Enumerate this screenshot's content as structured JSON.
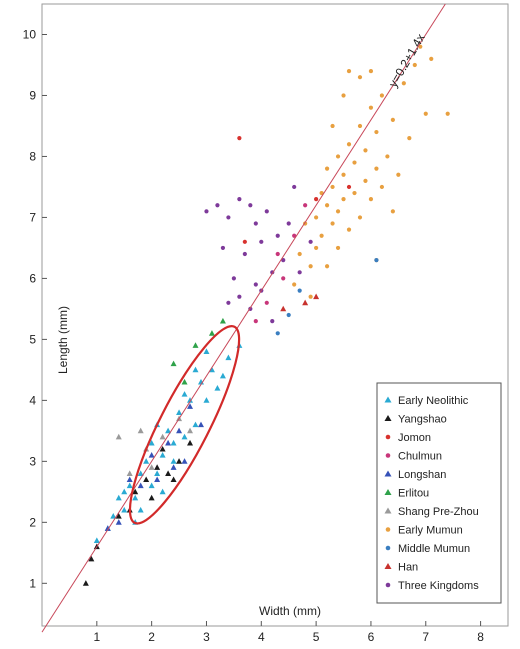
{
  "chart_data": {
    "type": "scatter",
    "xlabel": "Width (mm)",
    "ylabel": "Length (mm)",
    "xlim": [
      0,
      8.5
    ],
    "ylim": [
      0.3,
      10.5
    ],
    "x_ticks": [
      "1",
      "2",
      "3",
      "4",
      "5",
      "6",
      "7",
      "8"
    ],
    "y_ticks": [
      "1",
      "2",
      "3",
      "4",
      "5",
      "6",
      "7",
      "8",
      "9",
      "10"
    ],
    "grid": false,
    "legend_position": "bottom-right",
    "fit_line": {
      "label": "y=0.2+1.4x",
      "intercept": 0.2,
      "slope": 1.4,
      "color": "#c8485a"
    },
    "ellipse": {
      "center": [
        2.6,
        3.6
      ],
      "semi_axes": [
        0.45,
        2.05
      ],
      "angle_deg": 27,
      "color": "#d22a2a"
    },
    "series": [
      {
        "name": "Early Neolithic",
        "marker": "triangle",
        "color": "#2aaad3",
        "points": [
          [
            1.0,
            1.7
          ],
          [
            1.2,
            1.9
          ],
          [
            1.3,
            2.1
          ],
          [
            1.4,
            2.4
          ],
          [
            1.5,
            2.2
          ],
          [
            1.6,
            2.6
          ],
          [
            1.7,
            2.4
          ],
          [
            1.8,
            2.8
          ],
          [
            1.9,
            3.0
          ],
          [
            2.0,
            2.6
          ],
          [
            2.0,
            3.3
          ],
          [
            2.1,
            2.8
          ],
          [
            2.2,
            3.1
          ],
          [
            2.3,
            3.5
          ],
          [
            2.4,
            3.0
          ],
          [
            2.5,
            3.8
          ],
          [
            2.6,
            3.4
          ],
          [
            2.7,
            4.0
          ],
          [
            2.8,
            3.6
          ],
          [
            2.9,
            4.3
          ],
          [
            3.0,
            4.0
          ],
          [
            3.1,
            4.5
          ],
          [
            3.2,
            4.2
          ],
          [
            3.4,
            4.7
          ],
          [
            3.6,
            4.9
          ],
          [
            2.2,
            2.5
          ],
          [
            1.8,
            2.2
          ],
          [
            2.4,
            3.3
          ],
          [
            2.6,
            4.1
          ],
          [
            3.0,
            4.8
          ],
          [
            1.5,
            2.5
          ],
          [
            2.1,
            3.6
          ],
          [
            2.8,
            4.5
          ],
          [
            3.3,
            4.4
          ],
          [
            1.7,
            2.0
          ]
        ]
      },
      {
        "name": "Yangshao",
        "marker": "triangle",
        "color": "#1a1a1a",
        "points": [
          [
            0.8,
            1.0
          ],
          [
            0.9,
            1.4
          ],
          [
            1.0,
            1.6
          ],
          [
            1.4,
            2.1
          ],
          [
            1.7,
            2.5
          ],
          [
            1.9,
            2.7
          ],
          [
            2.1,
            2.9
          ],
          [
            2.3,
            2.8
          ],
          [
            2.5,
            3.0
          ],
          [
            2.0,
            2.4
          ],
          [
            2.2,
            3.2
          ],
          [
            1.6,
            2.2
          ],
          [
            2.4,
            2.7
          ],
          [
            2.7,
            3.3
          ]
        ]
      },
      {
        "name": "Jomon",
        "marker": "circle",
        "color": "#d8322e",
        "points": [
          [
            3.6,
            8.3
          ],
          [
            3.7,
            6.6
          ],
          [
            5.0,
            7.3
          ],
          [
            5.6,
            7.5
          ]
        ]
      },
      {
        "name": "Chulmun",
        "marker": "circle",
        "color": "#c8367a",
        "points": [
          [
            4.1,
            5.6
          ],
          [
            4.3,
            6.4
          ],
          [
            4.6,
            6.7
          ],
          [
            4.8,
            7.2
          ],
          [
            3.9,
            5.3
          ],
          [
            4.4,
            6.0
          ]
        ]
      },
      {
        "name": "Longshan",
        "marker": "triangle",
        "color": "#3652b8",
        "points": [
          [
            1.4,
            2.0
          ],
          [
            1.8,
            2.6
          ],
          [
            2.1,
            2.7
          ],
          [
            2.3,
            3.3
          ],
          [
            2.5,
            3.5
          ],
          [
            2.7,
            3.9
          ],
          [
            1.6,
            2.7
          ],
          [
            2.0,
            3.1
          ],
          [
            2.4,
            2.9
          ],
          [
            2.9,
            3.6
          ],
          [
            1.2,
            1.9
          ],
          [
            2.6,
            3.0
          ]
        ]
      },
      {
        "name": "Erlitou",
        "marker": "triangle",
        "color": "#2fa24a",
        "points": [
          [
            2.4,
            4.6
          ],
          [
            2.8,
            4.9
          ],
          [
            3.1,
            5.1
          ],
          [
            2.6,
            4.3
          ],
          [
            3.3,
            5.3
          ]
        ]
      },
      {
        "name": "Shang Pre-Zhou",
        "marker": "triangle",
        "color": "#9a9a9a",
        "points": [
          [
            1.4,
            3.4
          ],
          [
            1.6,
            2.8
          ],
          [
            1.9,
            3.2
          ],
          [
            2.2,
            3.4
          ],
          [
            2.5,
            3.7
          ],
          [
            2.0,
            2.9
          ],
          [
            2.7,
            3.5
          ],
          [
            1.8,
            3.5
          ]
        ]
      },
      {
        "name": "Early Mumun",
        "marker": "circle",
        "color": "#e8a040",
        "points": [
          [
            4.6,
            5.9
          ],
          [
            4.7,
            6.4
          ],
          [
            4.8,
            6.9
          ],
          [
            4.9,
            6.2
          ],
          [
            5.0,
            7.0
          ],
          [
            5.0,
            6.5
          ],
          [
            5.1,
            7.4
          ],
          [
            5.1,
            6.7
          ],
          [
            5.2,
            7.2
          ],
          [
            5.2,
            7.8
          ],
          [
            5.3,
            6.9
          ],
          [
            5.3,
            7.5
          ],
          [
            5.4,
            7.1
          ],
          [
            5.4,
            8.0
          ],
          [
            5.5,
            7.3
          ],
          [
            5.5,
            7.7
          ],
          [
            5.6,
            6.8
          ],
          [
            5.6,
            8.2
          ],
          [
            5.7,
            7.4
          ],
          [
            5.7,
            7.9
          ],
          [
            5.8,
            7.0
          ],
          [
            5.8,
            8.5
          ],
          [
            5.9,
            7.6
          ],
          [
            5.9,
            8.1
          ],
          [
            6.0,
            7.3
          ],
          [
            6.0,
            8.8
          ],
          [
            6.1,
            7.8
          ],
          [
            6.1,
            8.4
          ],
          [
            6.2,
            7.5
          ],
          [
            6.2,
            9.0
          ],
          [
            6.3,
            8.0
          ],
          [
            6.4,
            8.6
          ],
          [
            6.5,
            7.7
          ],
          [
            6.6,
            9.2
          ],
          [
            6.7,
            8.3
          ],
          [
            6.8,
            9.5
          ],
          [
            7.0,
            8.7
          ],
          [
            7.1,
            9.6
          ],
          [
            7.4,
            8.7
          ],
          [
            6.9,
            9.8
          ],
          [
            5.8,
            9.3
          ],
          [
            5.5,
            9.0
          ],
          [
            5.3,
            8.5
          ],
          [
            6.1,
            6.3
          ],
          [
            5.2,
            6.2
          ],
          [
            4.9,
            5.7
          ],
          [
            6.4,
            7.1
          ],
          [
            5.6,
            9.4
          ],
          [
            6.0,
            9.4
          ],
          [
            5.4,
            6.5
          ]
        ]
      },
      {
        "name": "Middle Mumun",
        "marker": "circle",
        "color": "#3a7ec0",
        "points": [
          [
            4.3,
            5.1
          ],
          [
            4.7,
            5.8
          ],
          [
            6.1,
            6.3
          ],
          [
            4.5,
            5.4
          ]
        ]
      },
      {
        "name": "Han",
        "marker": "triangle",
        "color": "#c8322e",
        "points": [
          [
            4.4,
            5.5
          ],
          [
            4.8,
            5.6
          ],
          [
            5.0,
            5.7
          ]
        ]
      },
      {
        "name": "Three Kingdoms",
        "marker": "circle",
        "color": "#7e3a9a",
        "points": [
          [
            3.4,
            7.0
          ],
          [
            3.6,
            7.3
          ],
          [
            3.8,
            7.2
          ],
          [
            4.0,
            6.6
          ],
          [
            4.1,
            7.1
          ],
          [
            4.3,
            6.7
          ],
          [
            4.4,
            6.3
          ],
          [
            4.5,
            6.9
          ],
          [
            3.5,
            6.0
          ],
          [
            3.7,
            6.4
          ],
          [
            3.9,
            5.9
          ],
          [
            4.2,
            6.1
          ],
          [
            3.3,
            6.5
          ],
          [
            3.0,
            7.1
          ],
          [
            3.2,
            7.2
          ],
          [
            3.6,
            5.7
          ],
          [
            3.8,
            5.5
          ],
          [
            4.0,
            5.8
          ],
          [
            4.6,
            7.5
          ],
          [
            4.7,
            6.1
          ],
          [
            4.9,
            6.6
          ],
          [
            3.4,
            5.6
          ],
          [
            4.2,
            5.3
          ],
          [
            3.9,
            6.9
          ]
        ]
      }
    ]
  }
}
